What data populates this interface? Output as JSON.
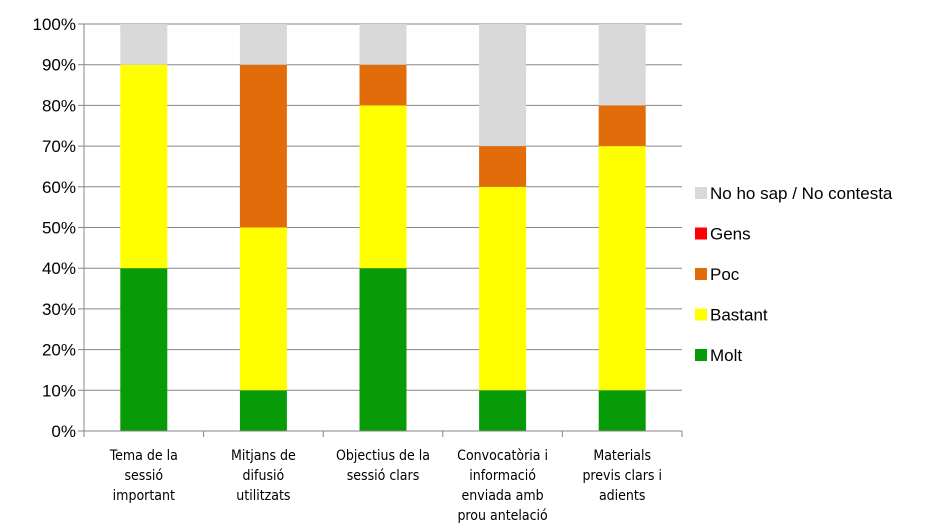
{
  "chart_data": {
    "type": "bar",
    "stacked": true,
    "percent": true,
    "categories": [
      [
        "Tema de la",
        "sessió",
        "important"
      ],
      [
        "Mitjans de",
        "difusió",
        "utilitzats"
      ],
      [
        "Objectius de la",
        "sessió clars"
      ],
      [
        "Convocatòria i",
        "informació",
        "enviada amb",
        "prou antelació"
      ],
      [
        "Materials",
        "previs clars i",
        "adients"
      ]
    ],
    "series": [
      {
        "name": "Molt",
        "color": "#079C07",
        "values": [
          40,
          10,
          40,
          10,
          10
        ]
      },
      {
        "name": "Bastant",
        "color": "#FFFF00",
        "values": [
          50,
          40,
          40,
          50,
          60
        ]
      },
      {
        "name": "Poc",
        "color": "#E36C0A",
        "values": [
          0,
          40,
          10,
          10,
          10
        ]
      },
      {
        "name": "Gens",
        "color": "#FF0000",
        "values": [
          0,
          0,
          0,
          0,
          0
        ]
      },
      {
        "name": "No ho sap / No contesta",
        "color": "#D9D9D9",
        "values": [
          10,
          10,
          10,
          30,
          20
        ]
      }
    ],
    "yticks": [
      "0%",
      "10%",
      "20%",
      "30%",
      "40%",
      "50%",
      "60%",
      "70%",
      "80%",
      "90%",
      "100%"
    ],
    "ylim": [
      0,
      100
    ],
    "grid": true,
    "legend_position": "right",
    "title": "",
    "xlabel": "",
    "ylabel": ""
  }
}
